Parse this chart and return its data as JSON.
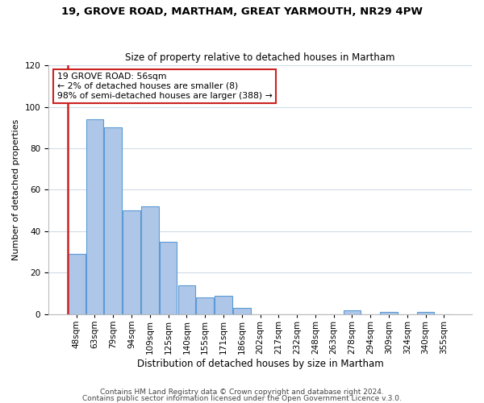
{
  "title1": "19, GROVE ROAD, MARTHAM, GREAT YARMOUTH, NR29 4PW",
  "title2": "Size of property relative to detached houses in Martham",
  "xlabel": "Distribution of detached houses by size in Martham",
  "ylabel": "Number of detached properties",
  "bar_labels": [
    "48sqm",
    "63sqm",
    "79sqm",
    "94sqm",
    "109sqm",
    "125sqm",
    "140sqm",
    "155sqm",
    "171sqm",
    "186sqm",
    "202sqm",
    "217sqm",
    "232sqm",
    "248sqm",
    "263sqm",
    "278sqm",
    "294sqm",
    "309sqm",
    "324sqm",
    "340sqm",
    "355sqm"
  ],
  "bar_values": [
    29,
    94,
    90,
    50,
    52,
    35,
    14,
    8,
    9,
    3,
    0,
    0,
    0,
    0,
    0,
    2,
    0,
    1,
    0,
    1,
    0
  ],
  "bar_color": "#aec6e8",
  "bar_edge_color": "#5b9bd5",
  "highlight_color": "#cc2222",
  "annotation_title": "19 GROVE ROAD: 56sqm",
  "annotation_line1": "← 2% of detached houses are smaller (8)",
  "annotation_line2": "98% of semi-detached houses are larger (388) →",
  "annotation_box_color": "#ffffff",
  "annotation_box_edge": "#cc2222",
  "ylim": [
    0,
    120
  ],
  "yticks": [
    0,
    20,
    40,
    60,
    80,
    100,
    120
  ],
  "footer1": "Contains HM Land Registry data © Crown copyright and database right 2024.",
  "footer2": "Contains public sector information licensed under the Open Government Licence v.3.0.",
  "grid_color": "#d0dce8",
  "title1_fontsize": 9.5,
  "title2_fontsize": 8.5,
  "ylabel_fontsize": 8.0,
  "xlabel_fontsize": 8.5,
  "tick_fontsize": 7.5,
  "footer_fontsize": 6.5
}
